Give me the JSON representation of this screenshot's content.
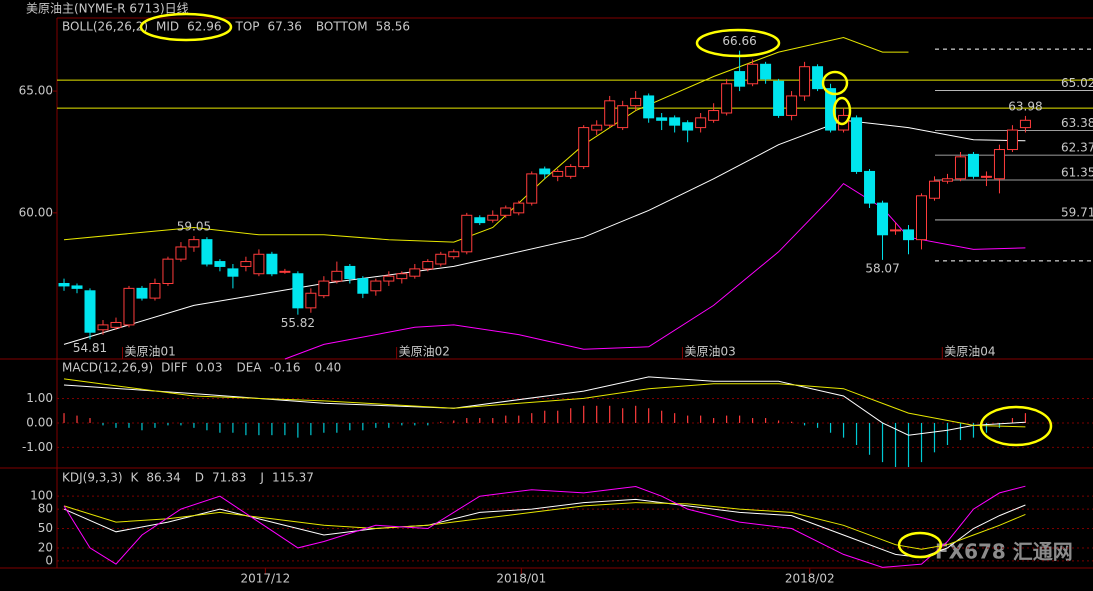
{
  "header": {
    "title": "美原油主(NYME-R 6713)日线"
  },
  "watermark": "FX678 汇通网",
  "chart_data": [
    {
      "type": "candlestick",
      "title": "BOLL(26,26,2)",
      "xlim": [
        -0.54,
        79.2
      ],
      "ylim": [
        54,
        68
      ],
      "yticks": [
        {
          "value": 65,
          "label": "65.00"
        },
        {
          "value": 60,
          "label": "60.00"
        }
      ],
      "xticks": [
        {
          "value": 4.5,
          "label": "美原油01"
        },
        {
          "value": 25.6,
          "label": "美原油02"
        },
        {
          "value": 47.6,
          "label": "美原油03"
        },
        {
          "value": 67.6,
          "label": "美原油04"
        }
      ],
      "up_color": "#ff3c3c",
      "down_color": "#00e5ee",
      "open": [
        57.1,
        57.0,
        56.8,
        55.2,
        55.3,
        55.4,
        56.9,
        56.5,
        57.1,
        58.1,
        58.6,
        58.9,
        58.0,
        57.7,
        57.8,
        57.5,
        58.3,
        57.6,
        57.5,
        56.1,
        56.6,
        57.2,
        57.8,
        57.3,
        56.8,
        57.2,
        57.3,
        57.4,
        57.7,
        57.9,
        58.2,
        58.4,
        59.8,
        59.7,
        59.9,
        60.0,
        60.4,
        61.8,
        61.5,
        61.5,
        61.9,
        63.4,
        63.6,
        63.5,
        64.4,
        64.8,
        63.9,
        63.9,
        63.7,
        63.5,
        63.8,
        64.1,
        65.8,
        65.3,
        66.1,
        65.4,
        64.0,
        64.8,
        66.0,
        65.1,
        63.4,
        63.9,
        61.7,
        60.4,
        59.3,
        59.3,
        58.9,
        60.6,
        61.3,
        61.4,
        62.4,
        61.5,
        61.4,
        62.6,
        63.5
      ],
      "high": [
        57.3,
        57.1,
        56.9,
        55.6,
        55.7,
        57.0,
        57.0,
        57.3,
        58.2,
        58.8,
        59.05,
        59.0,
        58.1,
        57.9,
        58.2,
        58.5,
        58.4,
        57.7,
        57.6,
        56.9,
        57.4,
        58.0,
        57.9,
        57.4,
        57.3,
        57.6,
        57.6,
        57.9,
        58.1,
        58.4,
        58.5,
        60.0,
        59.9,
        60.1,
        60.3,
        60.5,
        61.7,
        61.9,
        61.8,
        62.0,
        63.6,
        63.8,
        64.8,
        64.6,
        65.0,
        64.9,
        64.1,
        64.0,
        63.8,
        64.1,
        64.5,
        65.5,
        66.66,
        66.3,
        66.2,
        65.5,
        65.0,
        66.2,
        66.1,
        65.3,
        64.3,
        64.0,
        61.8,
        60.5,
        59.6,
        59.5,
        60.8,
        61.5,
        61.6,
        62.5,
        62.5,
        61.7,
        62.8,
        63.6,
        63.98
      ],
      "low": [
        56.8,
        56.7,
        54.81,
        55.0,
        55.2,
        55.3,
        56.4,
        56.4,
        57.0,
        58.0,
        58.4,
        57.8,
        57.6,
        56.9,
        57.6,
        57.4,
        57.4,
        57.5,
        55.82,
        55.9,
        56.5,
        57.1,
        57.1,
        56.5,
        56.6,
        57.0,
        57.1,
        57.3,
        57.6,
        57.8,
        58.1,
        58.3,
        59.5,
        59.6,
        59.8,
        59.9,
        60.3,
        61.4,
        61.3,
        61.4,
        61.8,
        63.2,
        63.5,
        63.4,
        64.2,
        63.7,
        63.4,
        63.3,
        62.9,
        63.3,
        63.7,
        64.0,
        65.0,
        65.2,
        65.3,
        63.9,
        63.8,
        64.6,
        65.0,
        63.3,
        63.3,
        61.6,
        60.2,
        58.07,
        59.1,
        58.3,
        58.5,
        60.5,
        61.2,
        61.3,
        61.4,
        61.1,
        60.8,
        62.5,
        63.3
      ],
      "close": [
        57.0,
        56.9,
        55.1,
        55.4,
        55.5,
        56.9,
        56.5,
        57.1,
        58.1,
        58.6,
        58.9,
        57.9,
        57.8,
        57.4,
        58.0,
        58.3,
        57.5,
        57.6,
        56.1,
        56.7,
        57.2,
        57.6,
        57.3,
        56.7,
        57.2,
        57.4,
        57.5,
        57.7,
        58.0,
        58.3,
        58.4,
        59.9,
        59.6,
        59.9,
        60.2,
        60.4,
        61.6,
        61.6,
        61.7,
        61.9,
        63.5,
        63.6,
        64.6,
        64.4,
        64.7,
        63.9,
        63.8,
        63.6,
        63.4,
        63.9,
        64.2,
        65.3,
        65.2,
        66.1,
        65.5,
        64.0,
        64.8,
        66.0,
        65.1,
        63.4,
        64.0,
        61.7,
        60.4,
        59.1,
        59.3,
        58.9,
        60.7,
        61.3,
        61.4,
        62.3,
        61.5,
        61.5,
        62.6,
        63.4,
        63.8
      ],
      "series": [
        {
          "name": "MID",
          "color": "#ffffff",
          "value": 62.96,
          "x": [
            0,
            10,
            20,
            30,
            40,
            45,
            50,
            55,
            60,
            65,
            70,
            74
          ],
          "values": [
            54.6,
            56.2,
            57.1,
            57.8,
            59.0,
            60.1,
            61.4,
            62.8,
            63.8,
            63.5,
            63.0,
            62.96
          ]
        },
        {
          "name": "TOP",
          "color": "#e6e600",
          "value": 67.36,
          "x": [
            0,
            10,
            15,
            20,
            25,
            30,
            33,
            37,
            40,
            44,
            50,
            55,
            60,
            63,
            65
          ],
          "values": [
            58.9,
            59.4,
            59.1,
            59.1,
            58.9,
            58.8,
            59.4,
            61.4,
            62.8,
            64.2,
            65.6,
            66.6,
            67.2,
            66.6,
            66.6
          ]
        },
        {
          "name": "BOTTOM",
          "color": "#ff00ff",
          "value": 58.56,
          "x": [
            17,
            20,
            27,
            30,
            35,
            40,
            45,
            50,
            55,
            59,
            60,
            63,
            65,
            70,
            74
          ],
          "values": [
            54.0,
            54.6,
            55.3,
            55.4,
            55.0,
            54.4,
            54.5,
            56.2,
            58.4,
            60.6,
            61.2,
            60.2,
            59.0,
            58.5,
            58.56
          ]
        }
      ],
      "hlines": [
        {
          "value": 65.45,
          "color": "#e6e600",
          "style": "solid"
        },
        {
          "value": 64.3,
          "color": "#e6e600",
          "style": "solid"
        },
        {
          "value": 66.72,
          "color": "#ffffff",
          "style": "dashed"
        },
        {
          "value": 58.03,
          "color": "#ffffff",
          "style": "dashed"
        }
      ],
      "levels": [
        65.02,
        63.38,
        62.37,
        61.35,
        59.71
      ],
      "annotations": [
        {
          "x": 10,
          "value": 59.05,
          "color": "#ff5050",
          "placement": "above"
        },
        {
          "x": 2,
          "value": 54.81,
          "color": "#00e5ee",
          "placement": "below"
        },
        {
          "x": 18,
          "value": 55.82,
          "color": "#00e5ee",
          "placement": "below"
        },
        {
          "x": 52,
          "value": 66.66,
          "color": "#ff5050",
          "placement": "above"
        },
        {
          "x": 63,
          "value": 58.07,
          "color": "#00e5ee",
          "placement": "below"
        },
        {
          "x": 74,
          "value": 63.98,
          "color": "#ff5050",
          "placement": "above"
        }
      ]
    },
    {
      "type": "macd",
      "title": "MACD(12,26,9)",
      "xlim": [
        -0.54,
        79.2
      ],
      "ylim": [
        -1.84,
        2.57
      ],
      "yticks": [
        {
          "value": 1,
          "label": "1.00"
        },
        {
          "value": 0,
          "label": "0.00"
        },
        {
          "value": -1,
          "label": "-1.00"
        }
      ],
      "grid": true,
      "series": [
        {
          "name": "DIFF",
          "color": "#ffffff",
          "value": 0.03,
          "x": [
            0,
            10,
            20,
            30,
            40,
            45,
            50,
            55,
            60,
            63,
            65,
            68,
            70,
            74
          ],
          "values": [
            1.55,
            1.2,
            0.8,
            0.6,
            1.3,
            1.88,
            1.7,
            1.7,
            1.1,
            0.0,
            -0.5,
            -0.3,
            -0.1,
            0.03
          ]
        },
        {
          "name": "DEA",
          "color": "#e6e600",
          "value": -0.16,
          "x": [
            0,
            10,
            20,
            30,
            40,
            45,
            50,
            55,
            60,
            65,
            70,
            74
          ],
          "values": [
            1.8,
            1.1,
            0.9,
            0.6,
            1.0,
            1.4,
            1.6,
            1.6,
            1.4,
            0.4,
            -0.1,
            -0.16
          ]
        }
      ],
      "histogram": {
        "current": {
          "value": 0.4,
          "label": "0.40"
        },
        "up_color": "#ff3c3c",
        "down_color": "#00c8d2",
        "values": [
          0.4,
          0.3,
          0.2,
          -0.1,
          -0.2,
          -0.2,
          -0.3,
          -0.2,
          -0.1,
          -0.1,
          -0.2,
          -0.3,
          -0.4,
          -0.4,
          -0.5,
          -0.5,
          -0.5,
          -0.5,
          -0.6,
          -0.5,
          -0.4,
          -0.4,
          -0.3,
          -0.3,
          -0.2,
          -0.2,
          -0.1,
          -0.1,
          -0.1,
          0.05,
          0.1,
          0.2,
          0.2,
          0.2,
          0.3,
          0.3,
          0.4,
          0.5,
          0.5,
          0.6,
          0.7,
          0.7,
          0.7,
          0.6,
          0.7,
          0.6,
          0.5,
          0.4,
          0.3,
          0.3,
          0.2,
          0.3,
          0.3,
          0.2,
          0.2,
          0.1,
          0.05,
          -0.1,
          -0.2,
          -0.4,
          -0.6,
          -0.9,
          -1.3,
          -1.6,
          -1.8,
          -1.8,
          -1.6,
          -1.2,
          -0.9,
          -0.7,
          -0.6,
          -0.4,
          -0.2,
          0.2,
          0.4
        ]
      }
    },
    {
      "type": "line",
      "title": "KDJ(9,3,3)",
      "xlim": [
        -0.54,
        79.2
      ],
      "ylim": [
        -11,
        142
      ],
      "yticks": [
        0,
        20,
        50,
        80,
        100
      ],
      "grid": true,
      "xticks": [
        {
          "value": 15.5,
          "label": "2017/12"
        },
        {
          "value": 35.2,
          "label": "2018/01"
        },
        {
          "value": 57.4,
          "label": "2018/02"
        }
      ],
      "series": [
        {
          "name": "K",
          "color": "#ffffff",
          "value": 86.34,
          "x": [
            0,
            4,
            8,
            12,
            16,
            20,
            24,
            28,
            32,
            36,
            40,
            44,
            48,
            52,
            56,
            60,
            64,
            66,
            68,
            70,
            72,
            74
          ],
          "values": [
            80,
            45,
            60,
            80,
            60,
            40,
            50,
            55,
            75,
            80,
            90,
            95,
            85,
            75,
            70,
            40,
            10,
            5,
            20,
            50,
            70,
            86.34
          ]
        },
        {
          "name": "D",
          "color": "#e6e600",
          "value": 71.83,
          "x": [
            0,
            4,
            8,
            12,
            16,
            20,
            24,
            28,
            32,
            36,
            40,
            44,
            48,
            52,
            56,
            60,
            64,
            66,
            68,
            70,
            72,
            74
          ],
          "values": [
            85,
            60,
            65,
            75,
            65,
            55,
            50,
            55,
            65,
            75,
            85,
            90,
            88,
            80,
            75,
            55,
            25,
            18,
            25,
            40,
            55,
            71.83
          ]
        },
        {
          "name": "J",
          "color": "#ff00ff",
          "value": 115.37,
          "x": [
            0,
            2,
            4,
            6,
            9,
            12,
            15,
            18,
            20,
            24,
            28,
            32,
            36,
            40,
            44,
            46,
            48,
            52,
            56,
            60,
            63,
            66,
            68,
            70,
            72,
            74
          ],
          "values": [
            85,
            20,
            -5,
            40,
            80,
            100,
            60,
            20,
            30,
            55,
            50,
            100,
            110,
            105,
            115,
            100,
            80,
            60,
            50,
            10,
            -10,
            -5,
            30,
            80,
            105,
            115.37
          ]
        }
      ]
    }
  ]
}
